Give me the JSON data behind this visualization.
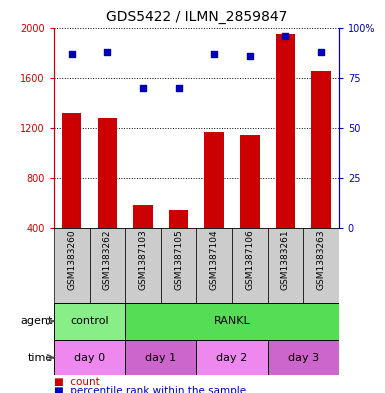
{
  "title": "GDS5422 / ILMN_2859847",
  "samples": [
    "GSM1383260",
    "GSM1383262",
    "GSM1387103",
    "GSM1387105",
    "GSM1387104",
    "GSM1387106",
    "GSM1383261",
    "GSM1383263"
  ],
  "counts": [
    1320,
    1275,
    580,
    545,
    1165,
    1145,
    1950,
    1650
  ],
  "percentile_ranks": [
    87,
    88,
    70,
    70,
    87,
    86,
    96,
    88
  ],
  "ylim_left": [
    400,
    2000
  ],
  "ylim_right": [
    0,
    100
  ],
  "yticks_left": [
    400,
    800,
    1200,
    1600,
    2000
  ],
  "yticks_right": [
    0,
    25,
    50,
    75,
    100
  ],
  "bar_color": "#cc0000",
  "dot_color": "#0000bb",
  "agent_labels": [
    {
      "label": "control",
      "start": 0,
      "end": 2,
      "color": "#88ee88"
    },
    {
      "label": "RANKL",
      "start": 2,
      "end": 8,
      "color": "#55dd55"
    }
  ],
  "time_labels": [
    {
      "label": "day 0",
      "start": 0,
      "end": 2,
      "color": "#ee88ee"
    },
    {
      "label": "day 1",
      "start": 2,
      "end": 4,
      "color": "#cc66cc"
    },
    {
      "label": "day 2",
      "start": 4,
      "end": 6,
      "color": "#ee88ee"
    },
    {
      "label": "day 3",
      "start": 6,
      "end": 8,
      "color": "#cc66cc"
    }
  ],
  "left_label_color": "#cc0000",
  "right_label_color": "#0000bb",
  "tick_label_bg": "#cccccc",
  "fig_width": 3.85,
  "fig_height": 3.93,
  "dpi": 100
}
